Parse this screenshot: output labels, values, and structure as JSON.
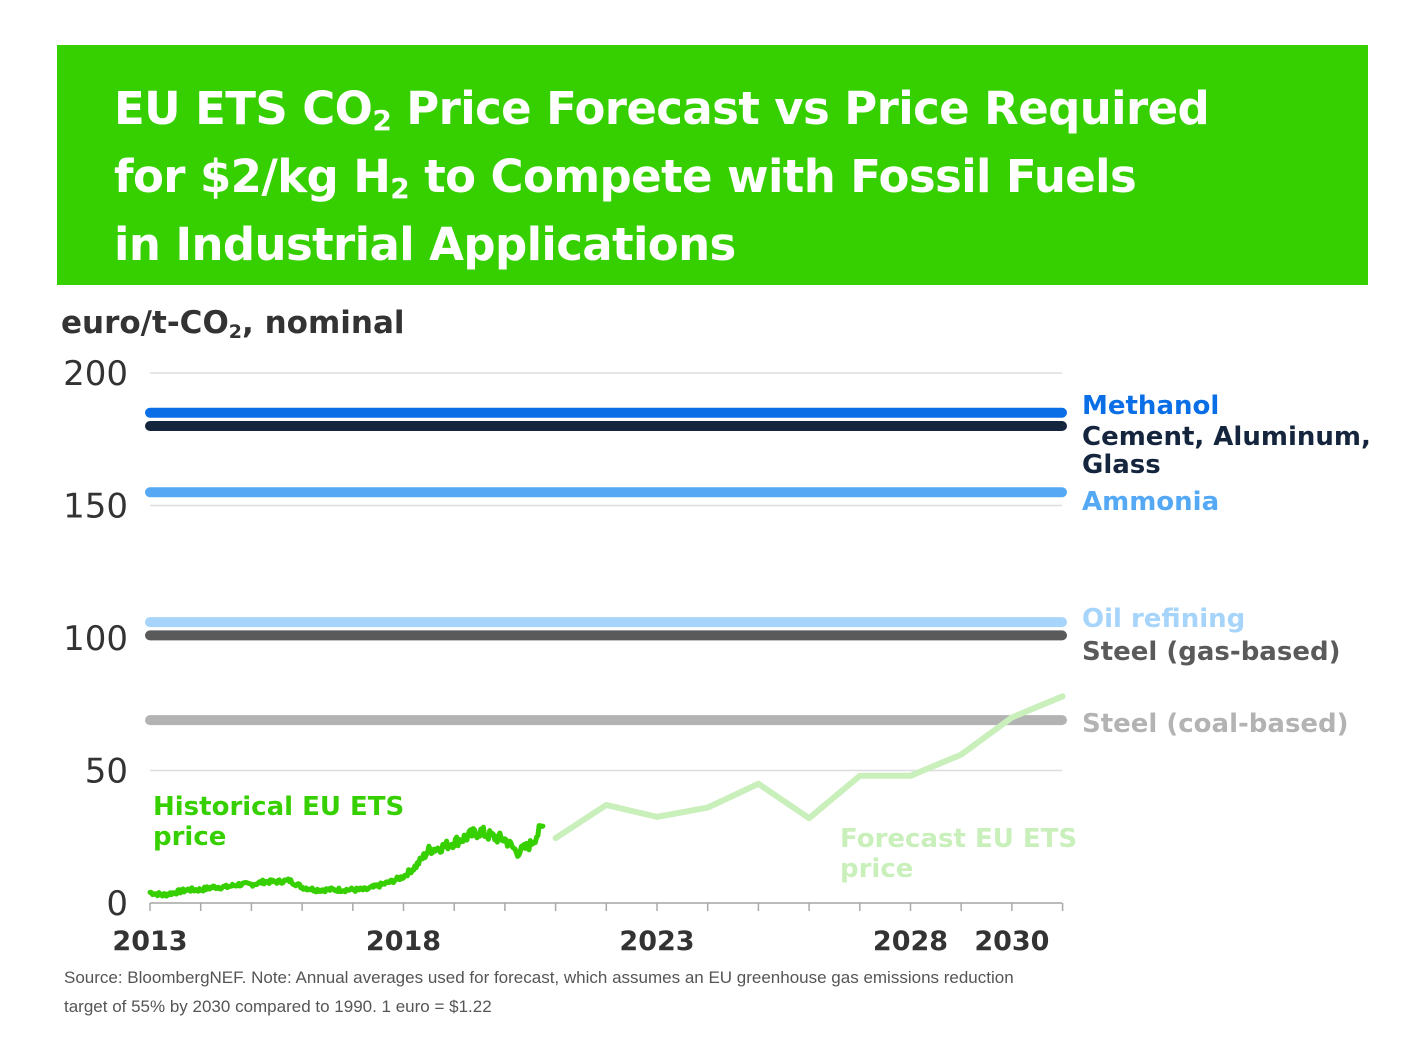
{
  "title": {
    "line1_a": "EU ETS CO",
    "line1_sub": "2",
    "line1_b": " Price Forecast vs Price Required",
    "line2_a": "for $2/kg H",
    "line2_sub": "2",
    "line2_b": " to Compete with Fossil Fuels",
    "line3": "in Industrial Applications"
  },
  "unit_label": {
    "a": "euro/t-CO",
    "sub": "2",
    "b": ", nominal"
  },
  "source": {
    "line1": "Source: BloombergNEF. Note: Annual averages used for forecast, which assumes an EU greenhouse gas emissions reduction",
    "line2": "target of 55% by 2030 compared to 1990. 1 euro = $1.22"
  },
  "colors": {
    "banner": "#36cf00",
    "historical": "#36cf00",
    "forecast": "#c9efbb",
    "methanol": "#0a6ee6",
    "cement": "#14253d",
    "ammonia": "#55a9f4",
    "oil_refining": "#a6d4fb",
    "steel_gas": "#5a5a5a",
    "steel_coal": "#b3b3b3",
    "axis_text": "#333333",
    "grid": "#dddddd"
  },
  "chart_data": {
    "type": "line",
    "ylim": [
      0,
      200
    ],
    "xlim": [
      2013,
      2031
    ],
    "y_ticks": [
      0,
      50,
      100,
      150,
      200
    ],
    "x_tick_labels": [
      {
        "x": 2013,
        "label": "2013"
      },
      {
        "x": 2018,
        "label": "2018"
      },
      {
        "x": 2023,
        "label": "2023"
      },
      {
        "x": 2028,
        "label": "2028"
      },
      {
        "x": 2030,
        "label": "2030"
      }
    ],
    "thresholds": [
      {
        "name": "Methanol",
        "value": 185,
        "color": "#0a6ee6"
      },
      {
        "name": "Cement, Aluminum, Glass",
        "value": 180,
        "color": "#14253d"
      },
      {
        "name": "Ammonia",
        "value": 155,
        "color": "#55a9f4"
      },
      {
        "name": "Oil refining",
        "value": 106,
        "color": "#a6d4fb"
      },
      {
        "name": "Steel (gas-based)",
        "value": 101,
        "color": "#5a5a5a"
      },
      {
        "name": "Steel (coal-based)",
        "value": 69,
        "color": "#b3b3b3"
      }
    ],
    "series": [
      {
        "name": "Historical EU ETS price",
        "color": "#36cf00",
        "x": [
          2013.0,
          2013.25,
          2013.5,
          2013.75,
          2014.0,
          2014.25,
          2014.5,
          2014.75,
          2015.0,
          2015.25,
          2015.5,
          2015.75,
          2016.0,
          2016.25,
          2016.5,
          2016.75,
          2017.0,
          2017.25,
          2017.5,
          2017.75,
          2018.0,
          2018.25,
          2018.5,
          2018.75,
          2019.0,
          2019.25,
          2019.5,
          2019.75,
          2020.0,
          2020.25,
          2020.5,
          2020.75
        ],
        "y": [
          4,
          3,
          4,
          5,
          5,
          6,
          6,
          7,
          7,
          8,
          8,
          8.5,
          6,
          5,
          5,
          5,
          5,
          5,
          6.5,
          8,
          10,
          14,
          20,
          21,
          23,
          25,
          27,
          25,
          24,
          19,
          22,
          29
        ]
      },
      {
        "name": "Forecast EU ETS price",
        "color": "#c9efbb",
        "x": [
          2021,
          2022,
          2023,
          2024,
          2025,
          2026,
          2027,
          2028,
          2029,
          2030,
          2031
        ],
        "y": [
          24.5,
          37,
          32.5,
          36,
          45,
          32,
          48,
          48,
          56,
          70,
          78
        ]
      }
    ],
    "annotations": [
      {
        "text_1": "Historical EU ETS",
        "text_2": "price",
        "color": "#36cf00"
      },
      {
        "text_1": "Forecast EU ETS",
        "text_2": "price",
        "color": "#c9efbb"
      }
    ]
  }
}
